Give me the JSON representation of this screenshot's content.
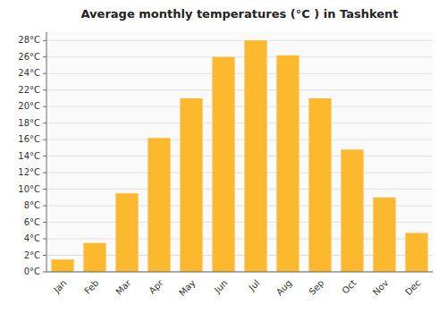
{
  "chart_data": {
    "type": "bar",
    "title": "Average monthly temperatures (°C ) in Tashkent",
    "categories": [
      "Jan",
      "Feb",
      "Mar",
      "Apr",
      "May",
      "Jun",
      "Jul",
      "Aug",
      "Sep",
      "Oct",
      "Nov",
      "Dec"
    ],
    "values": [
      1.5,
      3.5,
      9.5,
      16.2,
      21.0,
      26.0,
      28.0,
      26.2,
      21.0,
      14.8,
      9.0,
      4.7
    ],
    "color": "#FDB92E",
    "ylim": [
      0,
      29
    ],
    "yticks": [
      {
        "value": 0,
        "label": "0°C"
      },
      {
        "value": 2,
        "label": "2°C"
      },
      {
        "value": 4,
        "label": "4°C"
      },
      {
        "value": 6,
        "label": "6°C"
      },
      {
        "value": 8,
        "label": "8°C"
      },
      {
        "value": 10,
        "label": "10°C"
      },
      {
        "value": 12,
        "label": "12°C"
      },
      {
        "value": 14,
        "label": "14°C"
      },
      {
        "value": 16,
        "label": "16°C"
      },
      {
        "value": 18,
        "label": "18°C"
      },
      {
        "value": 20,
        "label": "20°C"
      },
      {
        "value": 22,
        "label": "22°C"
      },
      {
        "value": 24,
        "label": "24°C"
      },
      {
        "value": 26,
        "label": "26°C"
      },
      {
        "value": 28,
        "label": "28°C"
      }
    ],
    "grid": true
  }
}
